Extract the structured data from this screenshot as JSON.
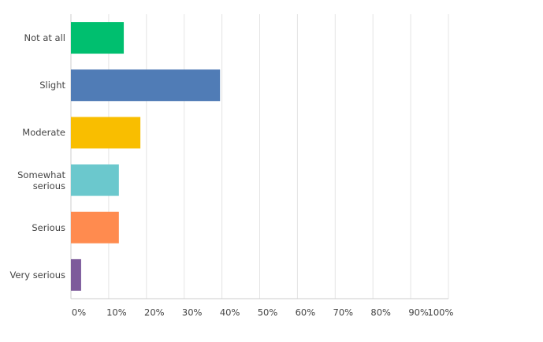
{
  "chart_data": {
    "type": "hbar",
    "categories": [
      "Not at all",
      "Slight",
      "Moderate",
      "Somewhat serious",
      "Serious",
      "Very serious"
    ],
    "values": [
      14.0,
      39.5,
      18.4,
      12.7,
      12.7,
      2.7
    ],
    "colors": [
      "#00bf6f",
      "#507cb6",
      "#f9be00",
      "#6bc8cd",
      "#ff8b4f",
      "#7d5b9b"
    ],
    "xlim": [
      0,
      100
    ],
    "xticks": [
      {
        "value": 0,
        "label": "0%"
      },
      {
        "value": 10,
        "label": "10%"
      },
      {
        "value": 20,
        "label": "20%"
      },
      {
        "value": 30,
        "label": "30%"
      },
      {
        "value": 40,
        "label": "40%"
      },
      {
        "value": 50,
        "label": "50%"
      },
      {
        "value": 60,
        "label": "60%"
      },
      {
        "value": 70,
        "label": "70%"
      },
      {
        "value": 80,
        "label": "80%"
      },
      {
        "value": 90,
        "label": "90%"
      },
      {
        "value": 100,
        "label": "100%"
      }
    ],
    "grid": true
  }
}
